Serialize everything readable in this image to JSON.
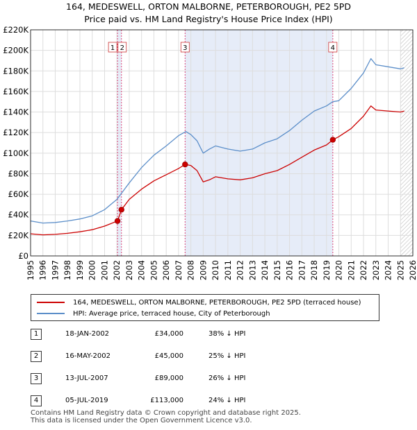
{
  "chart_data": {
    "type": "line",
    "title": "164, MEDESWELL, ORTON MALBORNE, PETERBOROUGH, PE2 5PD",
    "subtitle": "Price paid vs. HM Land Registry's House Price Index (HPI)",
    "xlim": [
      1995,
      2026
    ],
    "ylim": [
      0,
      220000
    ],
    "x_ticks": [
      1995,
      1996,
      1997,
      1998,
      1999,
      2000,
      2001,
      2002,
      2003,
      2004,
      2005,
      2006,
      2007,
      2008,
      2009,
      2010,
      2011,
      2012,
      2013,
      2014,
      2015,
      2016,
      2017,
      2018,
      2019,
      2020,
      2021,
      2022,
      2023,
      2024,
      2025,
      2026
    ],
    "y_ticks": [
      0,
      20000,
      40000,
      60000,
      80000,
      100000,
      120000,
      140000,
      160000,
      180000,
      200000,
      220000
    ],
    "y_tick_labels": [
      "£0",
      "£20K",
      "£40K",
      "£60K",
      "£80K",
      "£100K",
      "£120K",
      "£140K",
      "£160K",
      "£180K",
      "£200K",
      "£220K"
    ],
    "shaded_regions": [
      [
        2002.05,
        2002.37
      ],
      [
        2007.53,
        2019.51
      ]
    ],
    "hatched_after": 2025.0,
    "series": [
      {
        "name": "164, MEDESWELL, ORTON MALBORNE, PETERBOROUGH, PE2 5PD (terraced house)",
        "color": "#cc0000",
        "points": [
          [
            1995,
            21500
          ],
          [
            1995.5,
            21000
          ],
          [
            1996,
            20500
          ],
          [
            1997,
            21000
          ],
          [
            1998,
            22000
          ],
          [
            1999,
            23500
          ],
          [
            2000,
            25500
          ],
          [
            2001,
            29000
          ],
          [
            2002.05,
            34000
          ],
          [
            2002.37,
            45000
          ],
          [
            2003,
            55000
          ],
          [
            2004,
            65000
          ],
          [
            2005,
            73000
          ],
          [
            2006,
            79000
          ],
          [
            2007,
            85000
          ],
          [
            2007.53,
            89000
          ],
          [
            2008,
            88000
          ],
          [
            2008.5,
            83000
          ],
          [
            2009,
            72000
          ],
          [
            2009.5,
            74000
          ],
          [
            2010,
            77000
          ],
          [
            2011,
            75000
          ],
          [
            2012,
            74000
          ],
          [
            2013,
            76000
          ],
          [
            2014,
            80000
          ],
          [
            2015,
            83000
          ],
          [
            2016,
            89000
          ],
          [
            2017,
            96000
          ],
          [
            2018,
            103000
          ],
          [
            2019,
            108000
          ],
          [
            2019.51,
            113000
          ],
          [
            2020,
            116000
          ],
          [
            2021,
            124000
          ],
          [
            2022,
            136000
          ],
          [
            2022.6,
            146000
          ],
          [
            2023,
            142000
          ],
          [
            2024,
            141000
          ],
          [
            2025,
            140000
          ],
          [
            2025.3,
            141000
          ]
        ]
      },
      {
        "name": "HPI: Average price, terraced house, City of Peterborough",
        "color": "#5b8ec9",
        "points": [
          [
            1995,
            34000
          ],
          [
            1995.5,
            33000
          ],
          [
            1996,
            32000
          ],
          [
            1997,
            32500
          ],
          [
            1998,
            34000
          ],
          [
            1999,
            36000
          ],
          [
            2000,
            39000
          ],
          [
            2001,
            45000
          ],
          [
            2002,
            55000
          ],
          [
            2003,
            71000
          ],
          [
            2004,
            86000
          ],
          [
            2005,
            98000
          ],
          [
            2006,
            107000
          ],
          [
            2007,
            117000
          ],
          [
            2007.6,
            121000
          ],
          [
            2008,
            118000
          ],
          [
            2008.5,
            112000
          ],
          [
            2009,
            100000
          ],
          [
            2009.5,
            104000
          ],
          [
            2010,
            107000
          ],
          [
            2011,
            104000
          ],
          [
            2012,
            102000
          ],
          [
            2013,
            104000
          ],
          [
            2014,
            110000
          ],
          [
            2015,
            114000
          ],
          [
            2016,
            122000
          ],
          [
            2017,
            132000
          ],
          [
            2018,
            141000
          ],
          [
            2019,
            146000
          ],
          [
            2019.5,
            150000
          ],
          [
            2020,
            151000
          ],
          [
            2021,
            163000
          ],
          [
            2022,
            178000
          ],
          [
            2022.6,
            192000
          ],
          [
            2023,
            186000
          ],
          [
            2024,
            184000
          ],
          [
            2025,
            182000
          ],
          [
            2025.3,
            183000
          ]
        ]
      }
    ],
    "sales": [
      {
        "num": "1",
        "x": 2002.05,
        "price": 34000,
        "date": "18-JAN-2002",
        "price_label": "£34,000",
        "hpi": "38% ↓ HPI"
      },
      {
        "num": "2",
        "x": 2002.37,
        "price": 45000,
        "date": "16-MAY-2002",
        "price_label": "£45,000",
        "hpi": "25% ↓ HPI"
      },
      {
        "num": "3",
        "x": 2007.53,
        "price": 89000,
        "date": "13-JUL-2007",
        "price_label": "£89,000",
        "hpi": "26% ↓ HPI"
      },
      {
        "num": "4",
        "x": 2019.51,
        "price": 113000,
        "date": "05-JUL-2019",
        "price_label": "£113,000",
        "hpi": "24% ↓ HPI"
      }
    ]
  },
  "legend": {
    "property_label": "164, MEDESWELL, ORTON MALBORNE, PETERBOROUGH, PE2 5PD (terraced house)",
    "hpi_label": "HPI: Average price, terraced house, City of Peterborough"
  },
  "footer": {
    "line1": "Contains HM Land Registry data © Crown copyright and database right 2025.",
    "line2": "This data is licensed under the Open Government Licence v3.0."
  }
}
